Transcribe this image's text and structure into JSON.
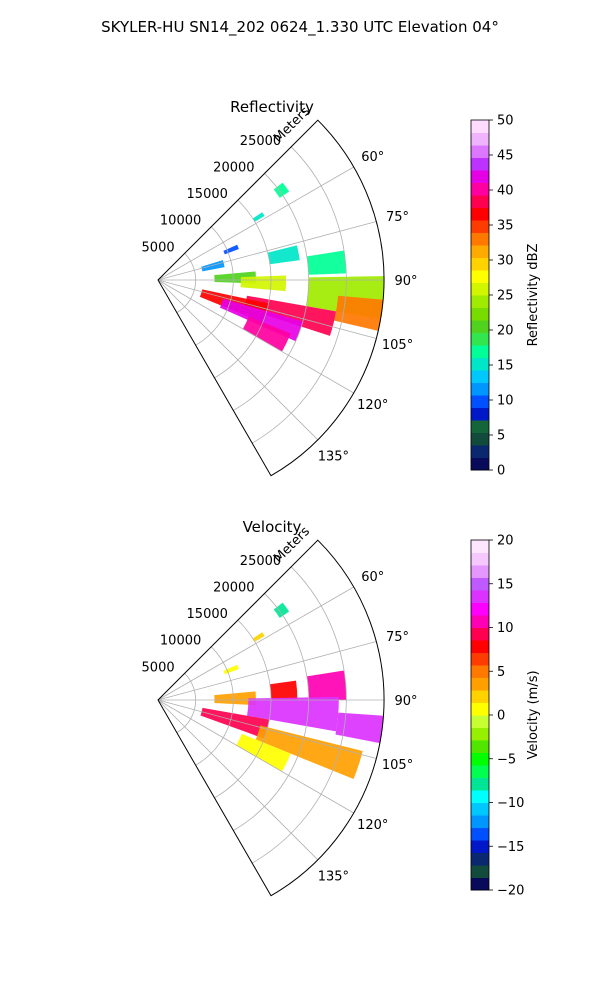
{
  "figure": {
    "title": "SKYLER-HU  SN14_202  0624_1.330 UTC Elevation 04°"
  },
  "colors": {
    "reflectivity_cmap": [
      "#0a0a5a",
      "#0a2870",
      "#124a3c",
      "#14663a",
      "#0018c8",
      "#0050ff",
      "#0096ff",
      "#00c8ff",
      "#00e6c8",
      "#00ff96",
      "#32e650",
      "#50d21e",
      "#78dc00",
      "#a0eb00",
      "#d2f500",
      "#ffff00",
      "#ffd200",
      "#ffaa00",
      "#ff7800",
      "#ff3c00",
      "#ff0000",
      "#ff0050",
      "#ff00a0",
      "#e600e6",
      "#be32ff",
      "#dc78ff",
      "#f0b4ff",
      "#ffdcff"
    ],
    "velocity_cmap": [
      "#0a0a5a",
      "#124a3c",
      "#0a2870",
      "#0018c8",
      "#0050ff",
      "#0096ff",
      "#00c8ff",
      "#00ffff",
      "#00e696",
      "#00ff50",
      "#00ff00",
      "#50e600",
      "#96f000",
      "#c8ff32",
      "#ffff00",
      "#ffd200",
      "#ffa000",
      "#ff7800",
      "#ff3c00",
      "#ff0000",
      "#ff0050",
      "#ff00b4",
      "#ff00ff",
      "#dc32ff",
      "#be5aff",
      "#e696ff",
      "#f5c8ff",
      "#ffe6ff"
    ]
  },
  "chart_data": [
    {
      "type": "heatmap",
      "title": "Reflectivity",
      "projection": "polar-sector",
      "azimuth_range_deg": [
        45,
        150
      ],
      "range_max_m": 30000,
      "radial_label": "Meters",
      "radial_ticks": [
        "5000",
        "10000",
        "15000",
        "20000",
        "25000"
      ],
      "azimuth_ticks": [
        "60°",
        "75°",
        "90°",
        "105°",
        "120°",
        "135°"
      ],
      "grid": true,
      "colorbar": {
        "label": "Reflectivity dBZ",
        "range": [
          0,
          50
        ],
        "ticks": [
          "0",
          "5",
          "10",
          "15",
          "20",
          "25",
          "30",
          "35",
          "40",
          "45",
          "50"
        ]
      },
      "echoes": [
        {
          "az": [
            52,
            56
          ],
          "r": [
            19500,
            21000
          ],
          "dbz": 17
        },
        {
          "az": [
            57,
            59
          ],
          "r": [
            15000,
            16500
          ],
          "dbz": 16
        },
        {
          "az": [
            66,
            69
          ],
          "r": [
            9500,
            11500
          ],
          "dbz": 10
        },
        {
          "az": [
            73,
            79
          ],
          "r": [
            6000,
            9000
          ],
          "dbz": 12
        },
        {
          "az": [
            76,
            82
          ],
          "r": [
            15000,
            19000
          ],
          "dbz": 16
        },
        {
          "az": [
            81,
            88
          ],
          "r": [
            20000,
            25000
          ],
          "dbz": 17
        },
        {
          "az": [
            85,
            92
          ],
          "r": [
            7500,
            13000
          ],
          "dbz": 20
        },
        {
          "az": [
            88,
            95
          ],
          "r": [
            11000,
            17000
          ],
          "dbz": 26
        },
        {
          "az": [
            89,
            100
          ],
          "r": [
            20000,
            30000
          ],
          "dbz": 24
        },
        {
          "az": [
            95,
            103
          ],
          "r": [
            24000,
            30000
          ],
          "dbz": 33
        },
        {
          "az": [
            100,
            108
          ],
          "r": [
            12000,
            24000
          ],
          "dbz": 38
        },
        {
          "az": [
            102,
            112
          ],
          "r": [
            6000,
            15000
          ],
          "dbz": 36
        },
        {
          "az": [
            106,
            114
          ],
          "r": [
            9000,
            20000
          ],
          "dbz": 42
        },
        {
          "az": [
            112,
            120
          ],
          "r": [
            13000,
            19000
          ],
          "dbz": 40
        }
      ]
    },
    {
      "type": "heatmap",
      "title": "Velocity",
      "projection": "polar-sector",
      "azimuth_range_deg": [
        45,
        150
      ],
      "range_max_m": 30000,
      "radial_label": "Meters",
      "radial_ticks": [
        "5000",
        "10000",
        "15000",
        "20000",
        "25000"
      ],
      "azimuth_ticks": [
        "60°",
        "75°",
        "90°",
        "105°",
        "120°",
        "135°"
      ],
      "grid": true,
      "colorbar": {
        "label": "Velocity (m/s)",
        "range": [
          -20,
          20
        ],
        "ticks": [
          "−20",
          "−15",
          "−10",
          "−5",
          "0",
          "5",
          "10",
          "15",
          "20"
        ]
      },
      "echoes": [
        {
          "az": [
            52,
            56
          ],
          "r": [
            19500,
            21000
          ],
          "vel": -8
        },
        {
          "az": [
            57,
            59
          ],
          "r": [
            15000,
            16500
          ],
          "vel": 2
        },
        {
          "az": [
            66,
            69
          ],
          "r": [
            9500,
            11500
          ],
          "vel": 0
        },
        {
          "az": [
            85,
            93
          ],
          "r": [
            7500,
            13000
          ],
          "vel": 4
        },
        {
          "az": [
            82,
            90
          ],
          "r": [
            15000,
            18500
          ],
          "vel": 8
        },
        {
          "az": [
            81,
            90
          ],
          "r": [
            20000,
            25000
          ],
          "vel": 10
        },
        {
          "az": [
            89,
            100
          ],
          "r": [
            12000,
            24000
          ],
          "vel": 13
        },
        {
          "az": [
            94,
            101
          ],
          "r": [
            24000,
            30000
          ],
          "vel": 14
        },
        {
          "az": [
            100,
            110
          ],
          "r": [
            6000,
            15000
          ],
          "vel": 9
        },
        {
          "az": [
            104,
            112
          ],
          "r": [
            14000,
            28000
          ],
          "vel": 3
        },
        {
          "az": [
            112,
            120
          ],
          "r": [
            12000,
            19000
          ],
          "vel": 1
        }
      ]
    }
  ]
}
